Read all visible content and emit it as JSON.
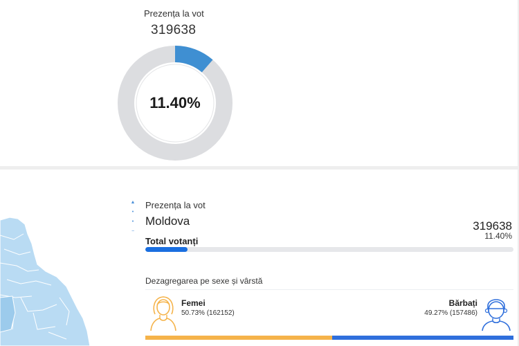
{
  "turnout_card": {
    "title": "Prezența la vot",
    "count": "319638",
    "percent_label": "11.40%",
    "percent_value": 11.4,
    "colors": {
      "fill": "#3f8fd2",
      "track": "#dcdde0"
    }
  },
  "region_panel": {
    "section_label": "Prezența la vot",
    "region_name": "Moldova",
    "count": "319638",
    "percent_label": "11.40%",
    "total_label": "Total votanți",
    "total_fraction": 0.114,
    "breakdown_title": "Dezagregarea pe sexe și vârstă",
    "female": {
      "name": "Femei",
      "stat": "50.73%  (162152)",
      "fraction": 0.5073,
      "color": "#f5b34a"
    },
    "male": {
      "name": "Bărbați",
      "stat": "49.27%  (157486)",
      "fraction": 0.4927,
      "color": "#2f6fdc"
    }
  },
  "map": {
    "icon": "moldova-map-icon",
    "color": "#b9dbf3"
  }
}
